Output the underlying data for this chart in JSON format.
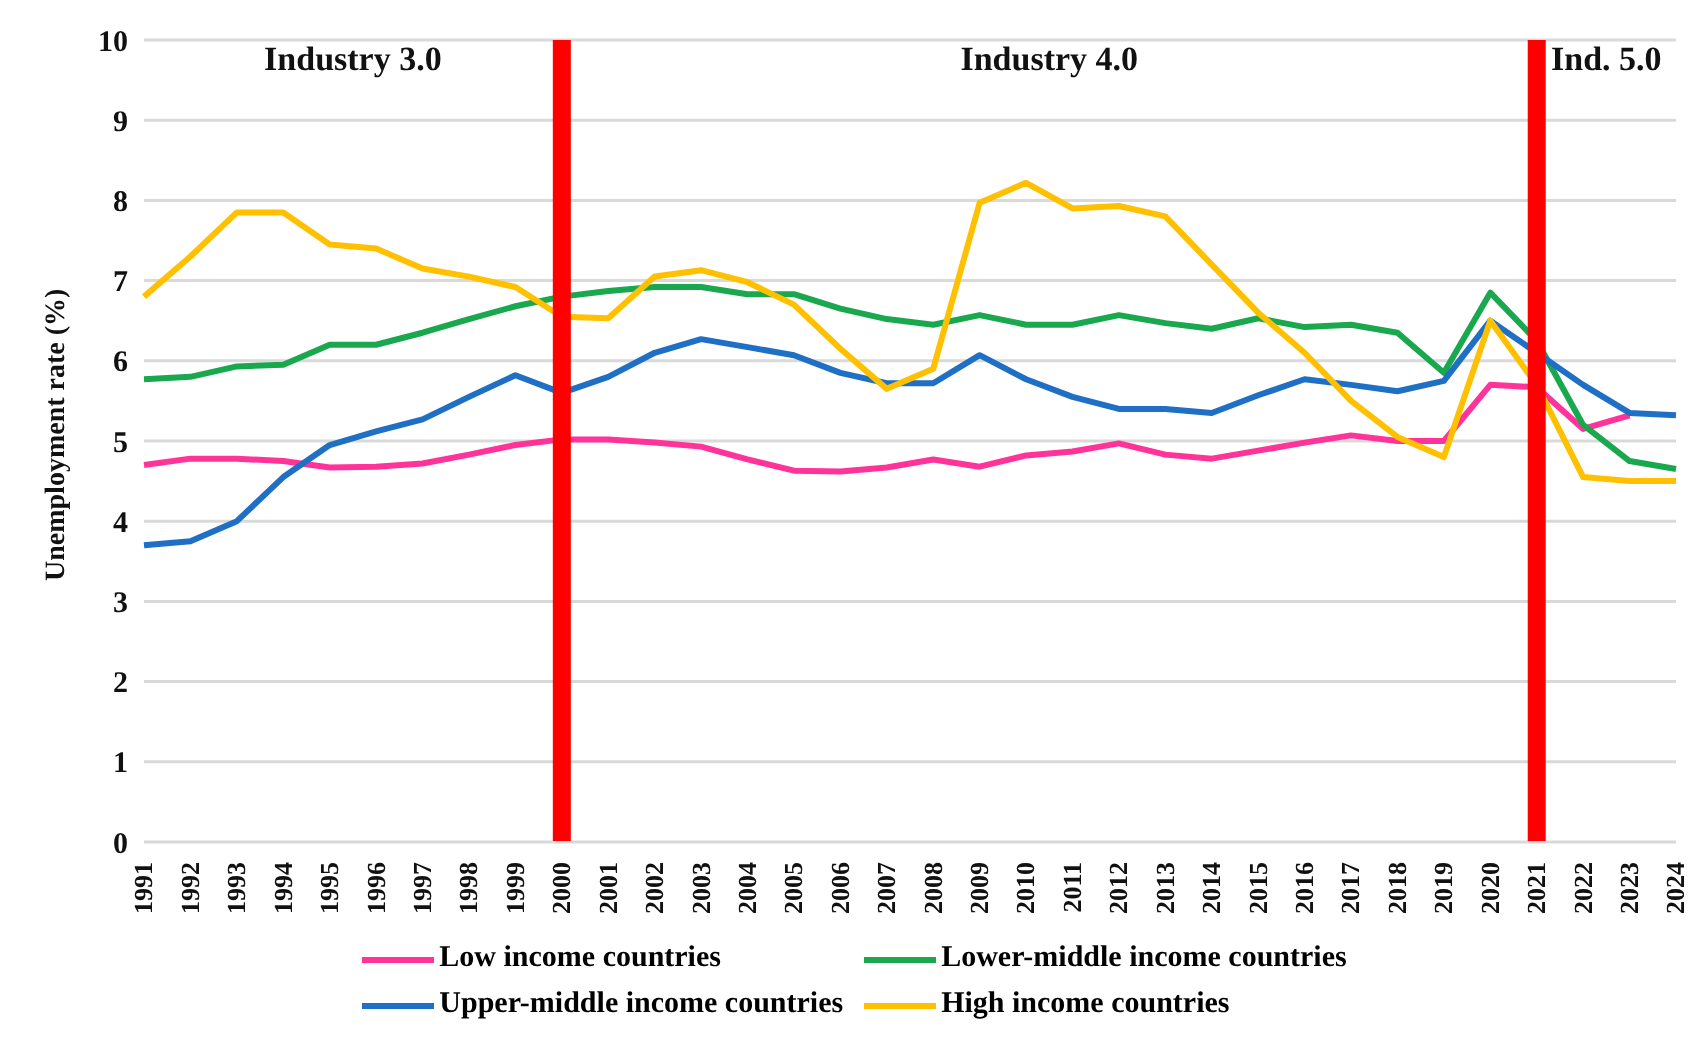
{
  "chart_data": {
    "type": "line",
    "ylabel": "Unemployment rate  (%)",
    "categories": [
      "1991",
      "1992",
      "1993",
      "1994",
      "1995",
      "1996",
      "1997",
      "1998",
      "1999",
      "2000",
      "2001",
      "2002",
      "2003",
      "2004",
      "2005",
      "2006",
      "2007",
      "2008",
      "2009",
      "2010",
      "2011",
      "2012",
      "2013",
      "2014",
      "2015",
      "2016",
      "2017",
      "2018",
      "2019",
      "2020",
      "2021",
      "2022",
      "2023",
      "2024"
    ],
    "series": [
      {
        "name": "Low income countries",
        "color": "#ff3399",
        "values": [
          4.7,
          4.78,
          4.78,
          4.75,
          4.67,
          4.68,
          4.72,
          4.83,
          4.95,
          5.02,
          5.02,
          4.98,
          4.93,
          4.77,
          4.63,
          4.62,
          4.67,
          4.77,
          4.68,
          4.82,
          4.87,
          4.97,
          4.83,
          4.78,
          4.88,
          4.98,
          5.07,
          5.0,
          5.0,
          5.7,
          5.67,
          5.15,
          5.32,
          null
        ]
      },
      {
        "name": "Lower-middle income countries",
        "color": "#1aa84f",
        "values": [
          5.77,
          5.8,
          5.93,
          5.95,
          6.2,
          6.2,
          6.35,
          6.52,
          6.68,
          6.8,
          6.87,
          6.92,
          6.92,
          6.83,
          6.83,
          6.65,
          6.52,
          6.45,
          6.57,
          6.45,
          6.45,
          6.57,
          6.47,
          6.4,
          6.53,
          6.42,
          6.45,
          6.35,
          5.85,
          6.85,
          6.25,
          5.2,
          4.75,
          4.65
        ]
      },
      {
        "name": "Upper-middle income countries",
        "color": "#1f6fc5",
        "values": [
          3.7,
          3.75,
          4.0,
          4.55,
          4.95,
          5.12,
          5.27,
          5.55,
          5.82,
          5.6,
          5.8,
          6.1,
          6.27,
          6.17,
          6.07,
          5.85,
          5.72,
          5.72,
          6.07,
          5.77,
          5.55,
          5.4,
          5.4,
          5.35,
          5.57,
          5.77,
          5.7,
          5.62,
          5.75,
          6.5,
          6.1,
          5.7,
          5.35,
          5.32
        ]
      },
      {
        "name": "High income countries",
        "color": "#ffc000",
        "values": [
          6.8,
          7.3,
          7.85,
          7.85,
          7.45,
          7.4,
          7.15,
          7.05,
          6.92,
          6.55,
          6.53,
          7.05,
          7.13,
          6.98,
          6.7,
          6.15,
          5.65,
          5.9,
          7.97,
          8.22,
          7.9,
          7.93,
          7.8,
          7.2,
          6.6,
          6.1,
          5.5,
          5.05,
          4.8,
          6.5,
          5.7,
          4.55,
          4.5,
          4.5
        ]
      }
    ],
    "ylim": [
      0,
      10
    ],
    "yticks": [
      0,
      1,
      2,
      3,
      4,
      5,
      6,
      7,
      8,
      9,
      10
    ],
    "grid": "y",
    "legend": "bottom",
    "marker": "none",
    "line_style": "solid",
    "ref_lines": [
      {
        "axis": "x",
        "value": "2000",
        "color": "#ff0000"
      },
      {
        "axis": "x",
        "value": "2021",
        "color": "#ff0000"
      }
    ],
    "annotations": [
      "Industry 3.0",
      "Industry 4.0",
      "Ind. 5.0"
    ]
  }
}
